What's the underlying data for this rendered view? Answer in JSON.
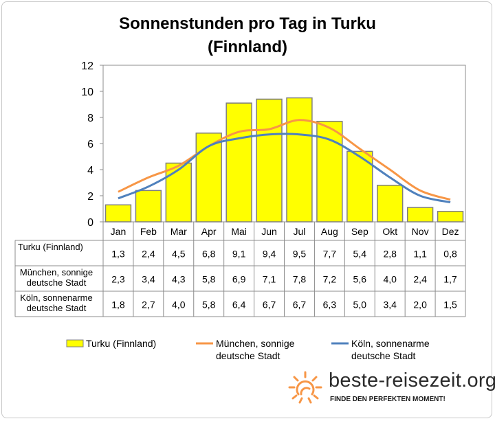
{
  "chart_data": {
    "type": "bar",
    "title": "Sonnenstunden pro Tag in Turku",
    "subtitle": "(Finnland)",
    "categories": [
      "Jan",
      "Feb",
      "Mar",
      "Apr",
      "Mai",
      "Jun",
      "Jul",
      "Aug",
      "Sep",
      "Okt",
      "Nov",
      "Dez"
    ],
    "ylim": [
      0,
      12
    ],
    "yticks": [
      0,
      2,
      4,
      6,
      8,
      10,
      12
    ],
    "grid": false,
    "legend": "bottom",
    "series": [
      {
        "name": "Turku (Finnland)",
        "table_label": [
          "Turku (Finnland)"
        ],
        "legend_label": [
          "Turku (Finnland)"
        ],
        "type": "bar",
        "color": "#ffff00",
        "values": [
          1.3,
          2.4,
          4.5,
          6.8,
          9.1,
          9.4,
          9.5,
          7.7,
          5.4,
          2.8,
          1.1,
          0.8
        ],
        "labels": [
          "1,3",
          "2,4",
          "4,5",
          "6,8",
          "9,1",
          "9,4",
          "9,5",
          "7,7",
          "5,4",
          "2,8",
          "1,1",
          "0,8"
        ]
      },
      {
        "name": "München, sonnige deutsche Stadt",
        "table_label": [
          "München, sonnige",
          "deutsche Stadt"
        ],
        "legend_label": [
          "München, sonnige",
          "deutsche Stadt"
        ],
        "type": "line",
        "color": "#f79646",
        "values": [
          2.3,
          3.4,
          4.3,
          5.8,
          6.9,
          7.1,
          7.8,
          7.2,
          5.6,
          4.0,
          2.4,
          1.7
        ],
        "labels": [
          "2,3",
          "3,4",
          "4,3",
          "5,8",
          "6,9",
          "7,1",
          "7,8",
          "7,2",
          "5,6",
          "4,0",
          "2,4",
          "1,7"
        ]
      },
      {
        "name": "Köln, sonnenarme deutsche Stadt",
        "table_label": [
          "Köln, sonnenarme",
          "deutsche Stadt"
        ],
        "legend_label": [
          "Köln, sonnenarme",
          "deutsche Stadt"
        ],
        "type": "line",
        "color": "#4f81bd",
        "values": [
          1.8,
          2.7,
          4.0,
          5.8,
          6.4,
          6.7,
          6.7,
          6.3,
          5.0,
          3.4,
          2.0,
          1.5
        ],
        "labels": [
          "1,8",
          "2,7",
          "4,0",
          "5,8",
          "6,4",
          "6,7",
          "6,7",
          "6,3",
          "5,0",
          "3,4",
          "2,0",
          "1,5"
        ]
      }
    ]
  },
  "branding": {
    "site": "beste-reisezeit.org",
    "tagline": "FINDE DEN PERFEKTEN MOMENT!",
    "accent_color": "#f79646",
    "icon": "sun-icon"
  }
}
